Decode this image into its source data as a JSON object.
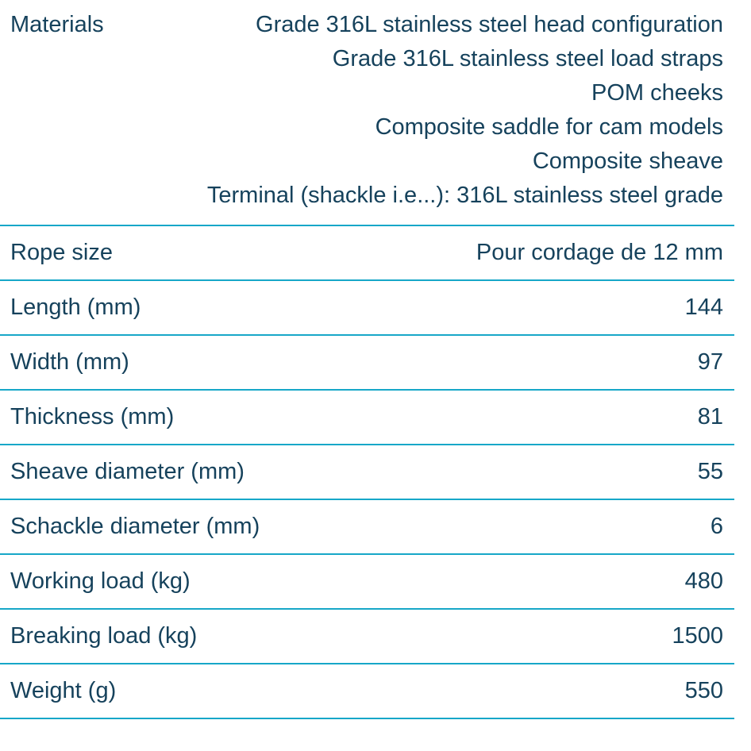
{
  "colors": {
    "text": "#16425c",
    "divider": "#17a7c8",
    "background": "#ffffff"
  },
  "table": {
    "rows": [
      {
        "label": "Materials",
        "values": [
          "Grade 316L stainless steel head configuration",
          "Grade 316L stainless steel load straps",
          "POM cheeks",
          "Composite saddle for cam models",
          "Composite sheave",
          "Terminal (shackle i.e...): 316L stainless steel grade"
        ]
      },
      {
        "label": "Rope size",
        "value": "Pour cordage de 12 mm"
      },
      {
        "label": "Length (mm)",
        "value": "144"
      },
      {
        "label": "Width (mm)",
        "value": "97"
      },
      {
        "label": "Thickness (mm)",
        "value": "81"
      },
      {
        "label": "Sheave diameter (mm)",
        "value": "55"
      },
      {
        "label": "Schackle diameter (mm)",
        "value": "6"
      },
      {
        "label": "Working load (kg)",
        "value": "480"
      },
      {
        "label": "Breaking load (kg)",
        "value": "1500"
      },
      {
        "label": "Weight (g)",
        "value": "550"
      }
    ]
  }
}
